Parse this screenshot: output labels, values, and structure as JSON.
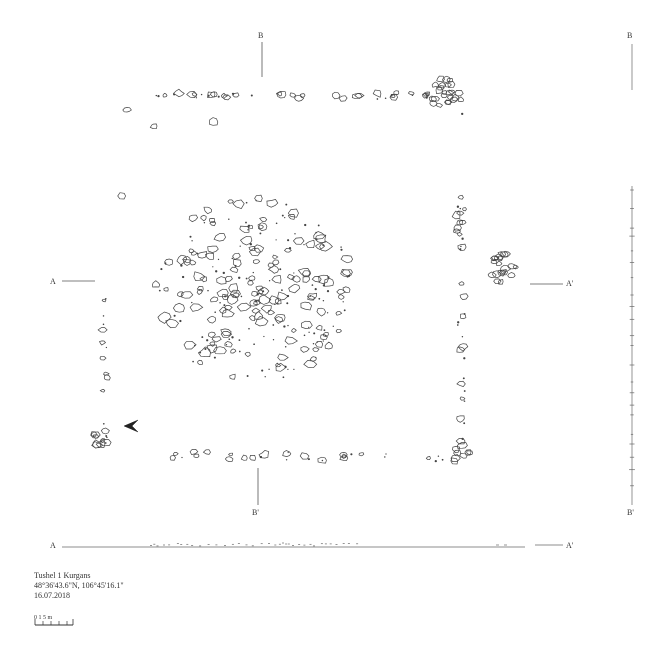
{
  "plan": {
    "section_labels": {
      "a_left": "A",
      "a_right": "A'",
      "b_top": "B",
      "b_bottom": "B'",
      "profile_right_top": "B",
      "profile_right_bottom": "B'",
      "profile_bottom_left": "A",
      "profile_bottom_right": "A'"
    },
    "north_arrow_icon": "north-arrow-icon",
    "stone_color": "#444444"
  },
  "caption": {
    "title": "Tushel 1 Kurgans",
    "coordinates": "48°36'43.6\"N, 106°45'16.1\"",
    "date": "16.07.2018",
    "scale_text": "0 1    5 m"
  }
}
